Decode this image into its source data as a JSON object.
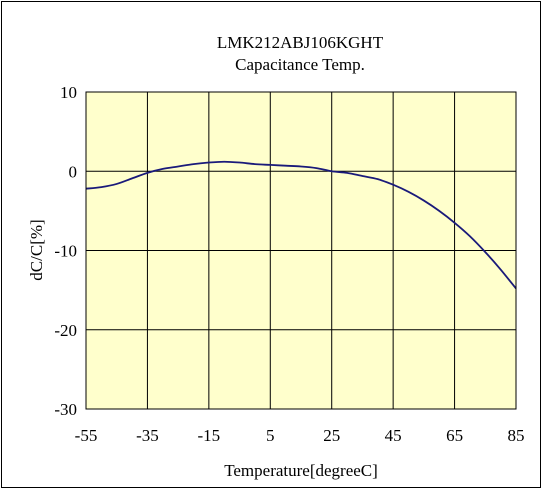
{
  "chart_data": {
    "type": "line",
    "title": "LMK212ABJ106KGHT",
    "subtitle": "Capacitance Temp.",
    "xlabel": "Temperature[degreeC]",
    "ylabel": "dC/C[%]",
    "xlim": [
      -55,
      85
    ],
    "ylim": [
      -30,
      10
    ],
    "xticks": [
      -55,
      -35,
      -15,
      5,
      25,
      45,
      65,
      85
    ],
    "yticks": [
      -30,
      -20,
      -10,
      0,
      10
    ],
    "grid": true,
    "colors": {
      "plot_bg": "#ffffcc",
      "line": "#1a1a7a",
      "grid": "#000000"
    },
    "series": [
      {
        "x": [
          -55,
          -50,
          -45,
          -40,
          -35,
          -30,
          -25,
          -20,
          -15,
          -10,
          -5,
          0,
          5,
          10,
          15,
          20,
          25,
          30,
          35,
          40,
          45,
          50,
          55,
          60,
          65,
          70,
          75,
          80,
          85
        ],
        "values": [
          -2.2,
          -2.0,
          -1.6,
          -0.9,
          -0.2,
          0.3,
          0.6,
          0.9,
          1.1,
          1.2,
          1.1,
          0.9,
          0.8,
          0.7,
          0.6,
          0.4,
          0.0,
          -0.2,
          -0.6,
          -1.0,
          -1.7,
          -2.6,
          -3.7,
          -5.0,
          -6.5,
          -8.2,
          -10.2,
          -12.4,
          -14.8
        ]
      }
    ]
  }
}
